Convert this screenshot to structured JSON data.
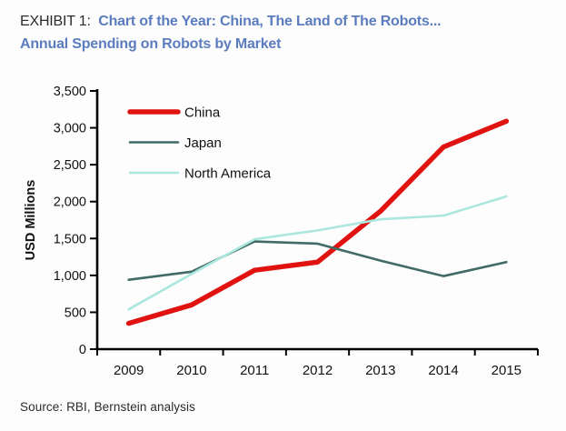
{
  "title": {
    "exhibit_label": "EXHIBIT 1:",
    "line1": "Chart of the Year:  China, The Land of The Robots...",
    "line2": "Annual Spending on Robots by Market"
  },
  "source": "Source: RBI, Bernstein analysis",
  "colors": {
    "title_blue": "#5b7cbe",
    "china_red": "#e01311",
    "japan_teal": "#426b68",
    "north_america_cyan": "#abe7df",
    "axis": "#000000"
  },
  "chart_data": {
    "type": "line",
    "x": [
      "2009",
      "2010",
      "2011",
      "2012",
      "2013",
      "2014",
      "2015"
    ],
    "series": [
      {
        "name": "China",
        "color": "#e01311",
        "stroke_width": 5.5,
        "values": [
          350,
          600,
          1070,
          1180,
          1870,
          2740,
          3090
        ]
      },
      {
        "name": "Japan",
        "color": "#426b68",
        "stroke_width": 2.6,
        "values": [
          940,
          1050,
          1460,
          1430,
          1200,
          990,
          1180
        ]
      },
      {
        "name": "North America",
        "color": "#abe7df",
        "stroke_width": 2.6,
        "values": [
          540,
          1020,
          1490,
          1610,
          1760,
          1810,
          2070
        ]
      }
    ],
    "ylabel": "USD Millions",
    "xlabel": "",
    "ylim": [
      0,
      3500
    ],
    "ytick_step": 500,
    "ytick_labels": [
      "0",
      "500",
      "1,000",
      "1,500",
      "2,000",
      "2,500",
      "3,000",
      "3,500"
    ],
    "grid": false,
    "legend_position": "top-left"
  }
}
